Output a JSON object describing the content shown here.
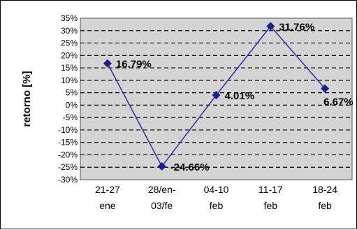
{
  "chart_data": {
    "type": "line",
    "title": "",
    "xlabel": "",
    "ylabel": "retorno [%]",
    "ylim": [
      -30,
      35
    ],
    "ytick_step": 5,
    "ytick_labels": [
      "35%",
      "30%",
      "25%",
      "20%",
      "15%",
      "10%",
      "5%",
      "0%",
      "-5%",
      "-10%",
      "-15%",
      "-20%",
      "-25%",
      "-30%"
    ],
    "categories": [
      [
        "21-27",
        "ene"
      ],
      [
        "28/en-",
        "03/fe"
      ],
      [
        "04-10",
        "feb"
      ],
      [
        "11-17",
        "feb"
      ],
      [
        "18-24",
        "feb"
      ]
    ],
    "values": [
      16.79,
      -24.66,
      4.01,
      31.76,
      6.67
    ],
    "data_labels": [
      "16.79%",
      "-24.66%",
      "4.01%",
      "31.76%",
      "6.67%"
    ],
    "grid": true,
    "legend": "none",
    "colors": {
      "line": "#2b2f9e",
      "marker": "#1a1f8c",
      "plot_area": "#d4d4d4",
      "gridline": "#000000"
    }
  }
}
